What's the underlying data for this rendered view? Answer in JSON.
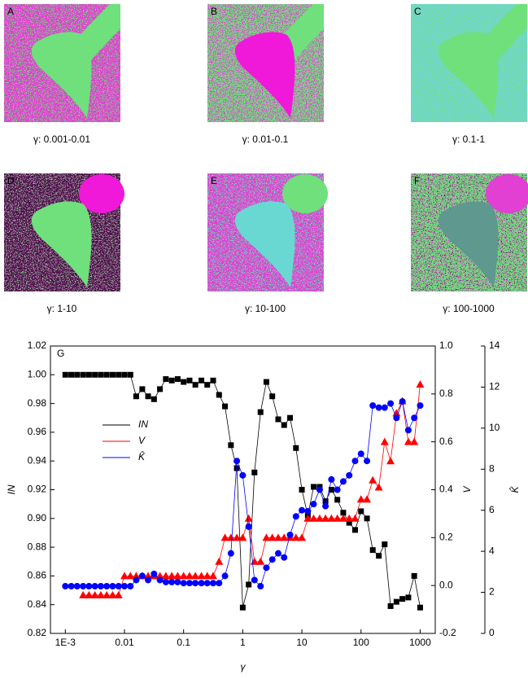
{
  "panels": [
    {
      "label": "A",
      "caption": "γ: 0.001-0.01"
    },
    {
      "label": "B",
      "caption": "γ: 0.01-0.1"
    },
    {
      "label": "C",
      "caption": "γ: 0.1-1"
    },
    {
      "label": "D",
      "caption": "γ: 1-10"
    },
    {
      "label": "E",
      "caption": "γ: 10-100"
    },
    {
      "label": "F",
      "caption": "γ: 100-1000"
    }
  ],
  "chart_data": {
    "type": "scatter",
    "panel_label": "G",
    "x_label": "γ",
    "y_label": "IN",
    "y2_label": "V",
    "y3_label": "K̂",
    "log_x": true,
    "xlim": [
      0.00056,
      1800
    ],
    "xticks": [
      {
        "value": 0.001,
        "label": "1E-3"
      },
      0.01,
      0.1,
      1,
      10,
      100,
      1000
    ],
    "ylim": [
      0.82,
      1.02
    ],
    "yticks": [
      0.82,
      0.84,
      0.86,
      0.88,
      {
        "value": 0.9,
        "label": "0.90"
      },
      0.92,
      0.94,
      0.96,
      0.98,
      {
        "value": 1,
        "label": "1.00"
      },
      1.02
    ],
    "y2lim": [
      -0.2,
      1.0
    ],
    "y2ticks": [
      -0.2,
      {
        "value": 0,
        "label": "0.0"
      },
      0.2,
      0.4,
      0.6,
      0.8,
      {
        "value": 1,
        "label": "1.0"
      }
    ],
    "y3lim": [
      0,
      14
    ],
    "y3ticks": [
      0,
      2,
      4,
      6,
      8,
      10,
      12,
      14
    ],
    "x": [
      0.001,
      0.00126,
      0.00158,
      0.002,
      0.00251,
      0.00316,
      0.00398,
      0.00501,
      0.00631,
      0.00794,
      0.01,
      0.0126,
      0.0158,
      0.02,
      0.0251,
      0.0316,
      0.0398,
      0.0501,
      0.0631,
      0.0794,
      0.1,
      0.126,
      0.158,
      0.2,
      0.251,
      0.316,
      0.398,
      0.501,
      0.631,
      0.794,
      1,
      1.26,
      1.58,
      2,
      2.51,
      3.16,
      3.98,
      5.01,
      6.31,
      7.94,
      10,
      12.6,
      15.8,
      20,
      25.1,
      31.6,
      39.8,
      50.1,
      63.1,
      79.4,
      100,
      126,
      158,
      200,
      251,
      316,
      398,
      501,
      631,
      794,
      1000
    ],
    "series": [
      {
        "name": "IN",
        "color": "#000000",
        "marker": "square",
        "axis": "y",
        "values": [
          1,
          1,
          1,
          1,
          1,
          1,
          1,
          1,
          1,
          1,
          1,
          1,
          0.985,
          0.99,
          0.985,
          0.983,
          0.99,
          0.997,
          0.996,
          0.997,
          0.995,
          0.996,
          0.993,
          0.996,
          0.993,
          0.996,
          0.986,
          0.978,
          0.951,
          0.935,
          0.838,
          0.854,
          0.932,
          0.974,
          0.995,
          0.985,
          0.969,
          0.965,
          0.97,
          0.949,
          0.92,
          0.902,
          0.922,
          0.922,
          0.912,
          0.92,
          0.913,
          0.904,
          0.897,
          0.892,
          0.905,
          0.9,
          0.878,
          0.874,
          0.882,
          0.839,
          0.842,
          0.844,
          0.845,
          0.86,
          0.838
        ]
      },
      {
        "name": "V",
        "color": "#ff0000",
        "marker": "triangle",
        "axis": "y2",
        "values": [
          null,
          null,
          null,
          -0.04,
          -0.04,
          -0.04,
          -0.04,
          -0.04,
          -0.04,
          -0.04,
          0.04,
          0.04,
          0.04,
          0.04,
          0.04,
          0.04,
          0.04,
          0.04,
          0.04,
          0.04,
          0.04,
          0.04,
          0.04,
          0.04,
          0.04,
          0.04,
          0.1,
          0.2,
          0.2,
          0.2,
          0.2,
          0.28,
          0.1,
          0.1,
          0.2,
          0.2,
          0.2,
          0.2,
          0.2,
          0.2,
          0.2,
          0.28,
          0.28,
          0.28,
          0.28,
          0.28,
          0.28,
          0.28,
          0.28,
          0.28,
          0.36,
          0.36,
          0.44,
          0.41,
          0.6,
          0.52,
          0.72,
          0.77,
          0.6,
          0.6,
          0.84
        ]
      },
      {
        "name": "K̂",
        "color": "#0000ff",
        "marker": "circle",
        "axis": "y3",
        "values": [
          2.3,
          2.3,
          2.3,
          2.3,
          2.3,
          2.3,
          2.3,
          2.3,
          2.3,
          2.3,
          2.3,
          2.3,
          2.6,
          2.8,
          2.6,
          2.9,
          2.6,
          2.5,
          2.5,
          2.5,
          2.45,
          2.45,
          2.45,
          2.45,
          2.45,
          2.45,
          2.45,
          2.8,
          3.9,
          8.4,
          7.7,
          5.2,
          2.6,
          2.3,
          3.2,
          3.6,
          3.9,
          3.7,
          4.8,
          5.7,
          6.0,
          5.95,
          6.3,
          7.0,
          6.2,
          7.5,
          7.0,
          7.4,
          7.7,
          8.4,
          8.75,
          8.4,
          11.1,
          11.0,
          11.0,
          11.2,
          10.5,
          11.3,
          9.9,
          10.5,
          11.1
        ]
      }
    ]
  }
}
